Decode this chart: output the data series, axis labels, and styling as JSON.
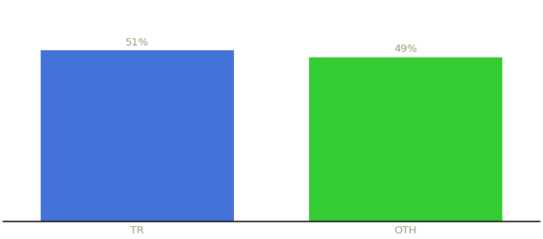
{
  "categories": [
    "TR",
    "OTH"
  ],
  "values": [
    51,
    49
  ],
  "bar_colors": [
    "#4472d9",
    "#33cc33"
  ],
  "label_texts": [
    "51%",
    "49%"
  ],
  "background_color": "#ffffff",
  "bar_width": 0.72,
  "ylim": [
    0,
    65
  ],
  "label_fontsize": 9.5,
  "tick_fontsize": 9.5,
  "label_color": "#999977",
  "tick_color": "#999977",
  "spine_color": "#111111",
  "xlim": [
    -0.5,
    1.5
  ]
}
